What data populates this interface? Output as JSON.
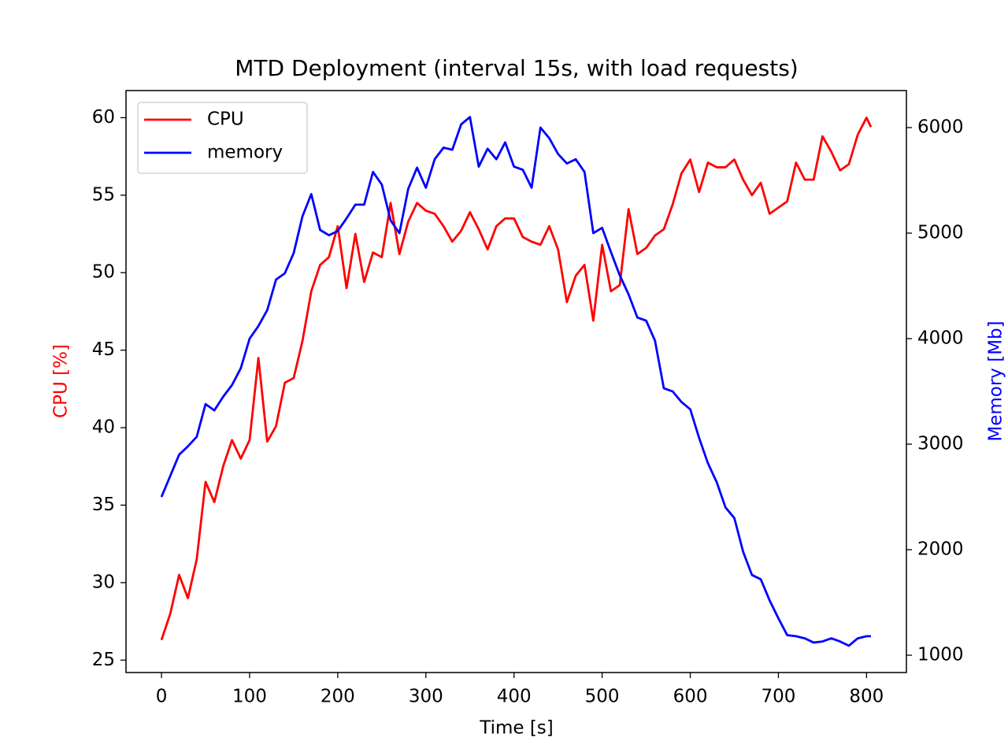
{
  "chart_data": {
    "type": "line",
    "title": "MTD Deployment (interval 15s, with load requests)",
    "xlabel": "Time [s]",
    "ylabel": "CPU [%]",
    "y2label": "Memory [Mb]",
    "x": [
      0,
      10,
      20,
      30,
      40,
      50,
      60,
      70,
      80,
      90,
      100,
      110,
      120,
      130,
      140,
      150,
      160,
      170,
      180,
      190,
      200,
      210,
      220,
      230,
      240,
      250,
      260,
      270,
      280,
      290,
      300,
      310,
      320,
      330,
      340,
      350,
      360,
      370,
      380,
      390,
      400,
      410,
      420,
      430,
      440,
      450,
      460,
      470,
      480,
      490,
      500,
      510,
      520,
      530,
      540,
      550,
      560,
      570,
      580,
      590,
      600,
      610,
      620,
      630,
      640,
      650,
      660,
      670,
      680,
      690,
      700,
      710,
      720,
      730,
      740,
      750,
      760,
      770,
      780,
      790,
      800,
      805
    ],
    "series": [
      {
        "name": "CPU",
        "color": "#ff0000",
        "axis": "y",
        "values": [
          26.3,
          28,
          30.5,
          29.0,
          31.5,
          36.5,
          35.2,
          37.5,
          39.2,
          38.0,
          39.2,
          44.5,
          39.1,
          40.1,
          42.9,
          43.2,
          45.6,
          48.8,
          50.5,
          51.0,
          53.0,
          49.0,
          52.5,
          49.4,
          51.3,
          51.0,
          54.5,
          51.2,
          53.3,
          54.5,
          54.0,
          53.8,
          53.0,
          52.0,
          52.7,
          53.9,
          52.8,
          51.5,
          53.0,
          53.5,
          53.5,
          52.3,
          52.0,
          51.8,
          53.0,
          51.5,
          48.1,
          49.8,
          50.5,
          46.9,
          51.8,
          48.8,
          49.2,
          54.1,
          51.2,
          51.6,
          52.4,
          52.8,
          54.4,
          56.4,
          57.3,
          55.2,
          57.1,
          56.8,
          56.8,
          57.3,
          56.0,
          55.0,
          55.8,
          53.8,
          54.2,
          54.6,
          57.1,
          56.0,
          56.0,
          58.8,
          57.8,
          56.6,
          57.0,
          58.9,
          60.0,
          59.4
        ]
      },
      {
        "name": "memory",
        "color": "#0000ff",
        "axis": "y2",
        "values": [
          2500,
          2700,
          2900,
          2980,
          3070,
          3380,
          3320,
          3450,
          3560,
          3720,
          4000,
          4120,
          4270,
          4560,
          4620,
          4810,
          5160,
          5370,
          5030,
          4980,
          5020,
          5140,
          5270,
          5270,
          5580,
          5460,
          5120,
          5000,
          5420,
          5620,
          5430,
          5700,
          5810,
          5790,
          6030,
          6100,
          5630,
          5800,
          5700,
          5860,
          5630,
          5600,
          5430,
          6000,
          5900,
          5750,
          5660,
          5700,
          5580,
          5000,
          5050,
          4820,
          4600,
          4420,
          4200,
          4170,
          3980,
          3530,
          3500,
          3400,
          3330,
          3060,
          2820,
          2640,
          2400,
          2300,
          1980,
          1760,
          1720,
          1520,
          1350,
          1190,
          1180,
          1160,
          1120,
          1130,
          1160,
          1130,
          1090,
          1160,
          1180,
          1180
        ]
      }
    ],
    "xlim": [
      -40.25,
      845.25
    ],
    "xticks": [
      0,
      100,
      200,
      300,
      400,
      500,
      600,
      700,
      800
    ],
    "ylim": [
      24.2,
      61.75
    ],
    "yticks": [
      25,
      30,
      35,
      40,
      45,
      50,
      55,
      60
    ],
    "y2lim": [
      836,
      6351
    ],
    "y2ticks": [
      1000,
      2000,
      3000,
      4000,
      5000,
      6000
    ],
    "legend": "upper left",
    "grid": false
  }
}
